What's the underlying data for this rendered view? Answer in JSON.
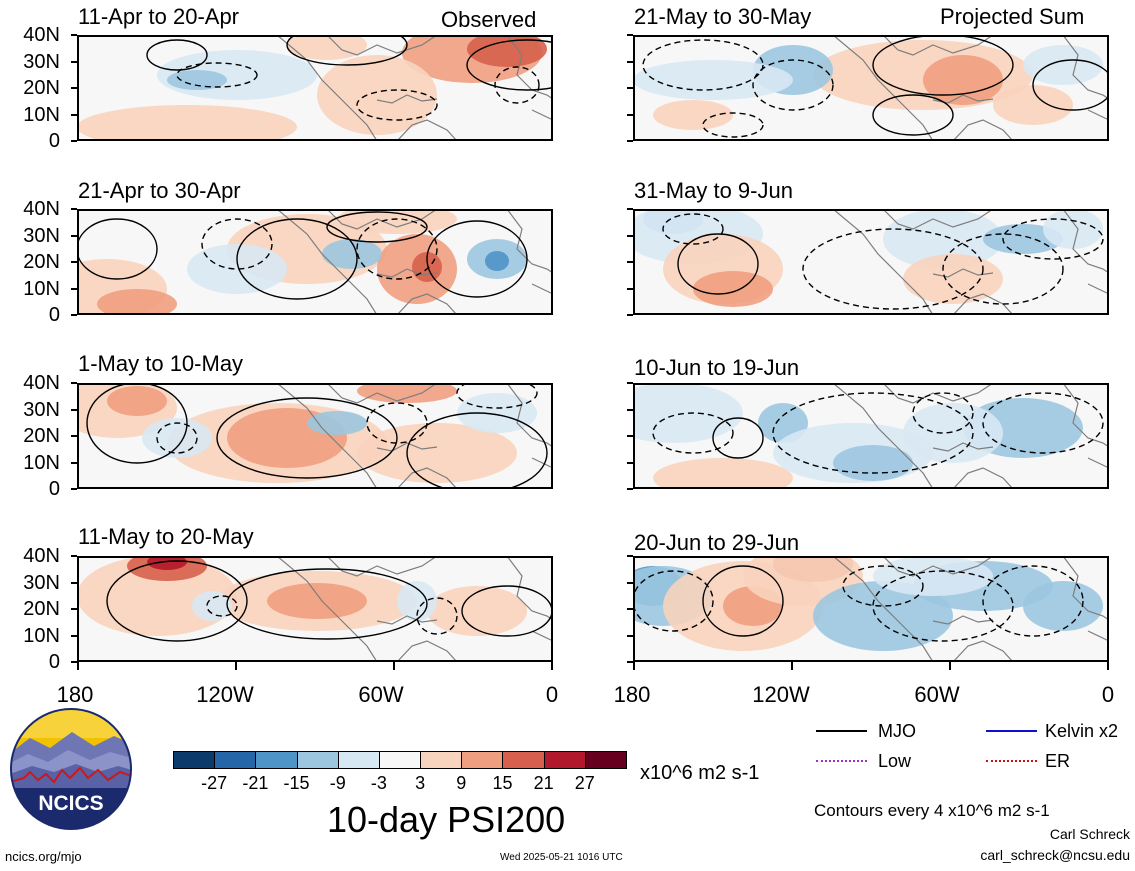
{
  "panels": [
    {
      "id": "p1",
      "title": "11-Apr to 20-Apr",
      "corner": "Observed",
      "kind": "obs"
    },
    {
      "id": "p2",
      "title": "21-Apr to 30-Apr",
      "corner": "",
      "kind": "obs"
    },
    {
      "id": "p3",
      "title": "1-May to 10-May",
      "corner": "",
      "kind": "obs"
    },
    {
      "id": "p4",
      "title": "11-May to 20-May",
      "corner": "",
      "kind": "obs"
    },
    {
      "id": "p5",
      "title": "21-May to 30-May",
      "corner": "Projected Sum",
      "kind": "proj"
    },
    {
      "id": "p6",
      "title": "31-May to 9-Jun",
      "corner": "",
      "kind": "proj"
    },
    {
      "id": "p7",
      "title": "10-Jun to 19-Jun",
      "corner": "",
      "kind": "proj"
    },
    {
      "id": "p8",
      "title": "20-Jun to 29-Jun",
      "corner": "",
      "kind": "proj"
    }
  ],
  "yaxis": [
    "40N",
    "30N",
    "20N",
    "10N",
    "0"
  ],
  "xaxis": [
    "180",
    "120W",
    "60W",
    "0"
  ],
  "colorbar": {
    "colors": [
      "#0b3a6b",
      "#2466a8",
      "#4f94c6",
      "#9cc6e0",
      "#d8e8f3",
      "#f7f7f7",
      "#f8d3bd",
      "#ef9e7f",
      "#d6604d",
      "#b2182b",
      "#67001f"
    ],
    "labels": [
      "-27",
      "-21",
      "-15",
      "-9",
      "-3",
      "3",
      "9",
      "15",
      "21",
      "27"
    ],
    "units": "x10^6 m2 s-1"
  },
  "main_title": "10-day PSI200",
  "legend": {
    "items": [
      {
        "label": "MJO",
        "color": "#000000"
      },
      {
        "label": "Kelvin x2",
        "color": "#1010d0"
      },
      {
        "label": "Low",
        "color": "#9b30d0"
      },
      {
        "label": "ER",
        "color": "#d01010"
      }
    ],
    "contour_note": "Contours every 4 x10^6 m2 s-1"
  },
  "credits": {
    "author": "Carl Schreck",
    "email": "carl_schreck@ncsu.edu",
    "site": "ncics.org/mjo",
    "timestamp": "Wed 2025-05-21 1016 UTC",
    "logo_text": "NCICS"
  }
}
